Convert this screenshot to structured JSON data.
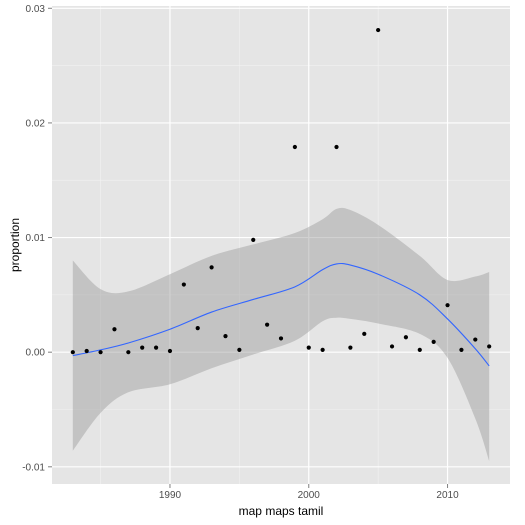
{
  "chart_data": {
    "type": "scatter",
    "title": "",
    "xlabel": "map maps tamil",
    "ylabel": "proportion",
    "xlim": [
      1981.5,
      2014.5
    ],
    "ylim": [
      -0.0115,
      0.0302
    ],
    "x_ticks": [
      1990,
      2000,
      2010
    ],
    "x_tick_labels": [
      "1990",
      "2000",
      "2010"
    ],
    "y_ticks": [
      -0.01,
      0.0,
      0.01,
      0.02,
      0.03
    ],
    "y_tick_labels": [
      "-0.01",
      "0.00",
      "0.01",
      "0.02",
      "0.03"
    ],
    "grid": true,
    "legend": "none",
    "colors": {
      "panel_background": "#e5e5e5",
      "grid_major": "#ffffff",
      "grid_minor": "#f2f2f2",
      "points": "#000000",
      "smooth_line": "#3366ff",
      "confidence_band": "#999999",
      "tick_text": "#4d4d4d"
    },
    "series": [
      {
        "type": "points",
        "x": [
          1983,
          1984,
          1985,
          1986,
          1987,
          1988,
          1989,
          1990,
          1991,
          1992,
          1993,
          1994,
          1995,
          1996,
          1997,
          1998,
          1999,
          2000,
          2001,
          2002,
          2003,
          2004,
          2005,
          2006,
          2007,
          2008,
          2009,
          2010,
          2011,
          2012,
          2013
        ],
        "y": [
          0.0,
          0.0001,
          0.0,
          0.002,
          0.0,
          0.0004,
          0.0004,
          0.0001,
          0.0059,
          0.0021,
          0.0074,
          0.0014,
          0.0002,
          0.0098,
          0.0024,
          0.0012,
          0.0179,
          0.0004,
          0.0002,
          0.0179,
          0.0004,
          0.0016,
          0.0281,
          0.0005,
          0.0013,
          0.0002,
          0.0009,
          0.0041,
          0.0002,
          0.0011,
          0.0005
        ]
      },
      {
        "type": "smooth",
        "x": [
          1983,
          1985,
          1987,
          1990,
          1993,
          1996,
          1999,
          2001,
          2002,
          2003,
          2005,
          2008,
          2010,
          2012,
          2013
        ],
        "y": [
          -0.0003,
          0.0002,
          0.0008,
          0.002,
          0.0035,
          0.0046,
          0.0057,
          0.0072,
          0.0077,
          0.0076,
          0.0068,
          0.005,
          0.0029,
          0.0003,
          -0.0012
        ],
        "upper": [
          0.008,
          0.0055,
          0.0053,
          0.0068,
          0.0084,
          0.0094,
          0.0104,
          0.0116,
          0.0125,
          0.0124,
          0.0111,
          0.0084,
          0.0063,
          0.0066,
          0.007
        ],
        "lower": [
          -0.0086,
          -0.0053,
          -0.0035,
          -0.0028,
          -0.0014,
          -0.0002,
          0.001,
          0.0027,
          0.003,
          0.0029,
          0.0025,
          0.0016,
          -0.0005,
          -0.0058,
          -0.0095
        ]
      }
    ]
  }
}
